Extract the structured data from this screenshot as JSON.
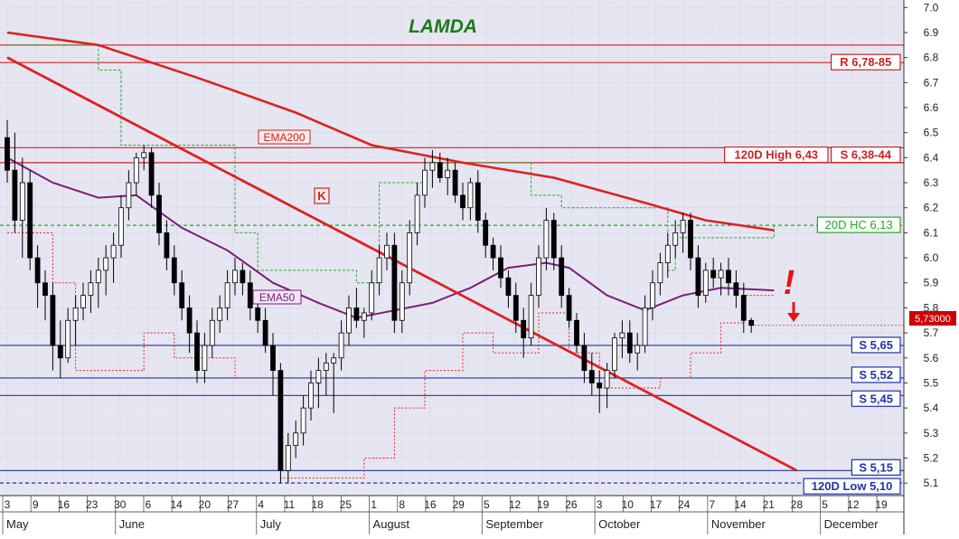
{
  "chart_data": {
    "type": "candlestick",
    "title": "LAMDA",
    "ylim": [
      5.05,
      7.03
    ],
    "grid": true,
    "y_ticks": [
      "5.1",
      "5.2",
      "5.3",
      "5.4",
      "5.5",
      "5.6",
      "5.7",
      "5.8",
      "5.9",
      "6.0",
      "6.1",
      "6.2",
      "6.3",
      "6.4",
      "6.5",
      "6.6",
      "6.7",
      "6.8",
      "6.9",
      "7.0"
    ],
    "day_labels": [
      "3",
      "9",
      "16",
      "23",
      "30",
      "6",
      "14",
      "20",
      "27",
      "4",
      "11",
      "18",
      "25",
      "1",
      "8",
      "16",
      "29",
      "5",
      "12",
      "19",
      "26",
      "3",
      "10",
      "17",
      "24",
      "7",
      "14",
      "21",
      "28",
      "5",
      "12",
      "19"
    ],
    "month_labels": [
      "May",
      "June",
      "July",
      "August",
      "September",
      "October",
      "November",
      "December"
    ],
    "price_label": "5,73000",
    "last_price": 5.73,
    "candles": [
      [
        6.48,
        6.55,
        6.3,
        6.35
      ],
      [
        6.35,
        6.5,
        6.1,
        6.15
      ],
      [
        6.15,
        6.4,
        6.0,
        6.3
      ],
      [
        6.3,
        6.35,
        5.95,
        6.0
      ],
      [
        6.0,
        6.05,
        5.8,
        5.9
      ],
      [
        5.9,
        5.95,
        5.75,
        5.85
      ],
      [
        5.85,
        5.9,
        5.55,
        5.65
      ],
      [
        5.65,
        5.75,
        5.52,
        5.6
      ],
      [
        5.6,
        5.8,
        5.58,
        5.75
      ],
      [
        5.75,
        5.85,
        5.65,
        5.8
      ],
      [
        5.8,
        5.9,
        5.75,
        5.85
      ],
      [
        5.85,
        5.95,
        5.78,
        5.9
      ],
      [
        5.9,
        6.0,
        5.8,
        5.95
      ],
      [
        5.95,
        6.05,
        5.85,
        6.0
      ],
      [
        6.0,
        6.1,
        5.9,
        6.05
      ],
      [
        6.05,
        6.25,
        6.0,
        6.2
      ],
      [
        6.2,
        6.35,
        6.15,
        6.3
      ],
      [
        6.3,
        6.42,
        6.25,
        6.4
      ],
      [
        6.4,
        6.45,
        6.35,
        6.42
      ],
      [
        6.42,
        6.44,
        6.2,
        6.25
      ],
      [
        6.25,
        6.3,
        6.05,
        6.1
      ],
      [
        6.1,
        6.15,
        5.95,
        6.0
      ],
      [
        6.0,
        6.05,
        5.85,
        5.9
      ],
      [
        5.9,
        5.95,
        5.75,
        5.8
      ],
      [
        5.8,
        5.85,
        5.62,
        5.7
      ],
      [
        5.7,
        5.75,
        5.5,
        5.55
      ],
      [
        5.55,
        5.7,
        5.5,
        5.65
      ],
      [
        5.65,
        5.8,
        5.6,
        5.75
      ],
      [
        5.75,
        5.85,
        5.7,
        5.8
      ],
      [
        5.8,
        5.95,
        5.75,
        5.9
      ],
      [
        5.9,
        6.0,
        5.85,
        5.95
      ],
      [
        5.95,
        5.98,
        5.85,
        5.9
      ],
      [
        5.9,
        5.95,
        5.75,
        5.8
      ],
      [
        5.8,
        5.85,
        5.7,
        5.75
      ],
      [
        5.75,
        5.8,
        5.62,
        5.65
      ],
      [
        5.65,
        5.7,
        5.45,
        5.55
      ],
      [
        5.55,
        5.58,
        5.1,
        5.15
      ],
      [
        5.15,
        5.3,
        5.1,
        5.25
      ],
      [
        5.25,
        5.35,
        5.2,
        5.3
      ],
      [
        5.3,
        5.45,
        5.25,
        5.4
      ],
      [
        5.4,
        5.55,
        5.35,
        5.5
      ],
      [
        5.5,
        5.6,
        5.4,
        5.55
      ],
      [
        5.55,
        5.62,
        5.45,
        5.58
      ],
      [
        5.58,
        5.62,
        5.38,
        5.6
      ],
      [
        5.6,
        5.75,
        5.55,
        5.7
      ],
      [
        5.7,
        5.85,
        5.65,
        5.8
      ],
      [
        5.8,
        5.88,
        5.72,
        5.75
      ],
      [
        5.75,
        5.8,
        5.68,
        5.78
      ],
      [
        5.78,
        5.95,
        5.75,
        5.9
      ],
      [
        5.9,
        6.05,
        5.85,
        6.0
      ],
      [
        6.0,
        6.1,
        5.95,
        6.05
      ],
      [
        6.05,
        6.1,
        5.7,
        5.75
      ],
      [
        5.75,
        5.95,
        5.7,
        5.9
      ],
      [
        5.9,
        6.15,
        5.85,
        6.1
      ],
      [
        6.1,
        6.3,
        6.05,
        6.25
      ],
      [
        6.25,
        6.4,
        6.2,
        6.35
      ],
      [
        6.35,
        6.43,
        6.28,
        6.38
      ],
      [
        6.38,
        6.42,
        6.3,
        6.32
      ],
      [
        6.32,
        6.4,
        6.25,
        6.35
      ],
      [
        6.35,
        6.38,
        6.22,
        6.25
      ],
      [
        6.25,
        6.3,
        6.15,
        6.2
      ],
      [
        6.2,
        6.32,
        6.15,
        6.3
      ],
      [
        6.3,
        6.35,
        6.1,
        6.15
      ],
      [
        6.15,
        6.18,
        6.0,
        6.05
      ],
      [
        6.05,
        6.08,
        5.95,
        6.0
      ],
      [
        6.0,
        6.05,
        5.88,
        5.92
      ],
      [
        5.92,
        5.95,
        5.8,
        5.85
      ],
      [
        5.85,
        5.9,
        5.7,
        5.75
      ],
      [
        5.75,
        5.8,
        5.6,
        5.68
      ],
      [
        5.68,
        5.9,
        5.65,
        5.85
      ],
      [
        5.85,
        6.05,
        5.8,
        6.0
      ],
      [
        6.0,
        6.2,
        5.95,
        6.15
      ],
      [
        6.15,
        6.18,
        5.95,
        6.0
      ],
      [
        6.0,
        6.05,
        5.8,
        5.85
      ],
      [
        5.85,
        5.88,
        5.72,
        5.75
      ],
      [
        5.75,
        5.78,
        5.62,
        5.65
      ],
      [
        5.65,
        5.7,
        5.5,
        5.55
      ],
      [
        5.55,
        5.62,
        5.45,
        5.5
      ],
      [
        5.5,
        5.55,
        5.38,
        5.48
      ],
      [
        5.48,
        5.58,
        5.4,
        5.55
      ],
      [
        5.55,
        5.7,
        5.52,
        5.68
      ],
      [
        5.68,
        5.75,
        5.6,
        5.7
      ],
      [
        5.7,
        5.75,
        5.58,
        5.62
      ],
      [
        5.62,
        5.7,
        5.55,
        5.65
      ],
      [
        5.65,
        5.85,
        5.62,
        5.8
      ],
      [
        5.8,
        5.95,
        5.75,
        5.9
      ],
      [
        5.9,
        6.02,
        5.85,
        5.98
      ],
      [
        5.98,
        6.1,
        5.92,
        6.05
      ],
      [
        6.05,
        6.15,
        6.0,
        6.1
      ],
      [
        6.1,
        6.18,
        6.02,
        6.15
      ],
      [
        6.15,
        6.18,
        5.95,
        6.0
      ],
      [
        6.0,
        6.05,
        5.8,
        5.85
      ],
      [
        5.85,
        5.98,
        5.82,
        5.95
      ],
      [
        5.95,
        6.0,
        5.88,
        5.92
      ],
      [
        5.92,
        5.98,
        5.85,
        5.95
      ],
      [
        5.95,
        6.0,
        5.85,
        5.9
      ],
      [
        5.9,
        5.95,
        5.8,
        5.85
      ],
      [
        5.85,
        5.9,
        5.7,
        5.75
      ],
      [
        5.75,
        5.76,
        5.7,
        5.73
      ]
    ],
    "ema200": [
      [
        0,
        6.9
      ],
      [
        12,
        6.85
      ],
      [
        25,
        6.72
      ],
      [
        38,
        6.58
      ],
      [
        48,
        6.45
      ],
      [
        60,
        6.38
      ],
      [
        72,
        6.32
      ],
      [
        84,
        6.22
      ],
      [
        92,
        6.15
      ],
      [
        101,
        6.11
      ]
    ],
    "ema50": [
      [
        0,
        6.4
      ],
      [
        6,
        6.3
      ],
      [
        12,
        6.24
      ],
      [
        17,
        6.25
      ],
      [
        23,
        6.12
      ],
      [
        29,
        6.03
      ],
      [
        35,
        5.9
      ],
      [
        41,
        5.82
      ],
      [
        46,
        5.76
      ],
      [
        51,
        5.79
      ],
      [
        56,
        5.82
      ],
      [
        61,
        5.88
      ],
      [
        66,
        5.96
      ],
      [
        71,
        5.98
      ],
      [
        74,
        5.96
      ],
      [
        79,
        5.85
      ],
      [
        84,
        5.79
      ],
      [
        89,
        5.85
      ],
      [
        94,
        5.88
      ],
      [
        101,
        5.87
      ]
    ],
    "hc20": [
      [
        0,
        6.85
      ],
      [
        11,
        6.85
      ],
      [
        12,
        6.75
      ],
      [
        15,
        6.45
      ],
      [
        27,
        6.45
      ],
      [
        30,
        6.1
      ],
      [
        33,
        5.95
      ],
      [
        42,
        5.95
      ],
      [
        46,
        5.9
      ],
      [
        48,
        5.9
      ],
      [
        49,
        6.3
      ],
      [
        55,
        6.38
      ],
      [
        66,
        6.38
      ],
      [
        69,
        6.25
      ],
      [
        73,
        6.2
      ],
      [
        80,
        6.2
      ],
      [
        84,
        6.2
      ],
      [
        87,
        5.95
      ],
      [
        88,
        6.08
      ],
      [
        101,
        6.13
      ]
    ],
    "lc20": [
      [
        0,
        6.1
      ],
      [
        6,
        5.9
      ],
      [
        9,
        5.55
      ],
      [
        15,
        5.55
      ],
      [
        18,
        5.7
      ],
      [
        22,
        5.6
      ],
      [
        30,
        5.52
      ],
      [
        36,
        5.12
      ],
      [
        45,
        5.12
      ],
      [
        47,
        5.2
      ],
      [
        51,
        5.4
      ],
      [
        55,
        5.55
      ],
      [
        60,
        5.7
      ],
      [
        64,
        5.62
      ],
      [
        70,
        5.78
      ],
      [
        74,
        5.62
      ],
      [
        78,
        5.48
      ],
      [
        82,
        5.48
      ],
      [
        86,
        5.52
      ],
      [
        90,
        5.62
      ],
      [
        94,
        5.74
      ],
      [
        97,
        5.85
      ],
      [
        101,
        5.85
      ]
    ],
    "trendline": {
      "start": [
        0,
        6.8
      ],
      "end": [
        104,
        5.15
      ]
    },
    "hlines": [
      {
        "value": 6.85,
        "color": "#cc2222",
        "style": "solid"
      },
      {
        "value": 6.78,
        "color": "#cc2222",
        "style": "solid",
        "label": "R 6,78-85"
      },
      {
        "value": 6.44,
        "color": "#cc2222",
        "style": "solid",
        "label": "S 6,38-44"
      },
      {
        "value": 6.43,
        "color": "#cc2222",
        "style": "none",
        "label": "120D High 6,43"
      },
      {
        "value": 6.38,
        "color": "#cc2222",
        "style": "solid"
      },
      {
        "value": 6.13,
        "color": "#22aa22",
        "style": "dashed",
        "label": "20D HC 6,13"
      },
      {
        "value": 5.65,
        "color": "#2233aa",
        "style": "solid",
        "label": "S 5,65"
      },
      {
        "value": 5.52,
        "color": "#2233aa",
        "style": "solid",
        "label": "S 5,52"
      },
      {
        "value": 5.45,
        "color": "#2233aa",
        "style": "solid",
        "label": "S 5,45"
      },
      {
        "value": 5.15,
        "color": "#2233aa",
        "style": "solid",
        "label": "S 5,15"
      },
      {
        "value": 5.1,
        "color": "#2233aa",
        "style": "dashed",
        "label": "120D Low 5,10"
      }
    ],
    "annotations": [
      {
        "text": "EMA200",
        "color": "#cc2222"
      },
      {
        "text": "EMA50",
        "color": "#7a1f7a"
      },
      {
        "text": "K",
        "color": "#cc2222"
      },
      {
        "text": "!",
        "color": "#ee1111"
      }
    ],
    "colors": {
      "background": "#e6e6f2",
      "grid": "#b8b8d8",
      "up_candle": "#ffffff",
      "down_candle": "#000000",
      "ema200": "#dd2222",
      "ema50": "#7a1f7a",
      "trendline": "#dd2222",
      "title": "#1a7a1a",
      "price_box": "#cc0000"
    }
  }
}
